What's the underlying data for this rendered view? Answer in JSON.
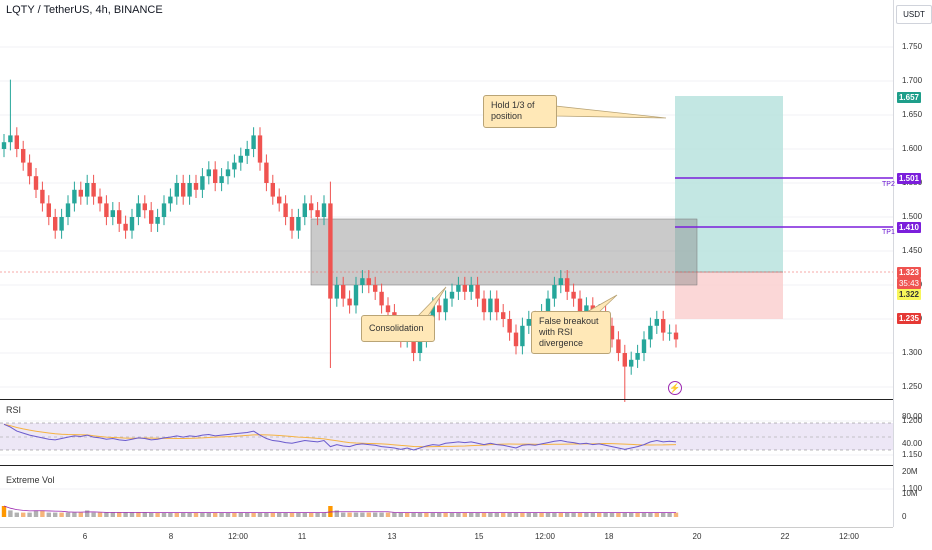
{
  "header": {
    "symbol_title": "LQTY / TetherUS, 4h, BINANCE",
    "currency": "USDT"
  },
  "price_axis": [
    "1.750",
    "1.700",
    "1.650",
    "1.600",
    "1.550",
    "1.500",
    "1.450",
    "1.400",
    "1.350",
    "1.300",
    "1.250",
    "1.200",
    "1.150",
    "1.100"
  ],
  "time_axis": [
    "6",
    "8",
    "12:00",
    "11",
    "13",
    "15",
    "12:00",
    "18",
    "20",
    "22",
    "12:00"
  ],
  "price_tags": {
    "target": "1.657",
    "tp2": "1.501",
    "tp1": "1.410",
    "last": "1.323",
    "countdown": "35:43",
    "entry": "1.322",
    "stop": "1.235"
  },
  "tp_labels": {
    "tp2": "TP2",
    "tp1": "TP1"
  },
  "notes": {
    "hold": "Hold 1/3 of\nposition",
    "consolidation": "Consolidation",
    "false_breakout": "False breakout\nwith RSI\ndivergence"
  },
  "rsi": {
    "label": "RSI",
    "ticks": [
      "80.00",
      "40.00"
    ]
  },
  "volume": {
    "label": "Extreme Vol",
    "ticks": [
      "20M",
      "10M",
      "0"
    ]
  },
  "colors": {
    "up": "#26a69a",
    "down": "#ef5350",
    "tp_line": "#7b1fdb",
    "profit_zone": "#b8e3de",
    "loss_zone": "#fbd3d3",
    "range_box": "#9e9e9e"
  },
  "chart_data": {
    "type": "candlestick",
    "timeframe": "4h",
    "ylim": [
      1.08,
      1.77
    ],
    "closes": [
      1.61,
      1.62,
      1.6,
      1.58,
      1.56,
      1.54,
      1.52,
      1.5,
      1.48,
      1.5,
      1.52,
      1.54,
      1.53,
      1.55,
      1.53,
      1.52,
      1.5,
      1.51,
      1.49,
      1.48,
      1.5,
      1.52,
      1.51,
      1.49,
      1.5,
      1.52,
      1.53,
      1.55,
      1.53,
      1.55,
      1.54,
      1.56,
      1.57,
      1.55,
      1.56,
      1.57,
      1.58,
      1.59,
      1.6,
      1.62,
      1.58,
      1.55,
      1.53,
      1.52,
      1.5,
      1.48,
      1.5,
      1.52,
      1.51,
      1.5,
      1.52,
      1.38,
      1.4,
      1.38,
      1.37,
      1.4,
      1.41,
      1.4,
      1.39,
      1.37,
      1.36,
      1.34,
      1.32,
      1.33,
      1.3,
      1.32,
      1.35,
      1.37,
      1.36,
      1.38,
      1.39,
      1.4,
      1.39,
      1.4,
      1.38,
      1.36,
      1.38,
      1.36,
      1.35,
      1.33,
      1.31,
      1.34,
      1.35,
      1.34,
      1.36,
      1.38,
      1.4,
      1.41,
      1.39,
      1.38,
      1.36,
      1.37,
      1.35,
      1.36,
      1.34,
      1.32,
      1.3,
      1.28,
      1.29,
      1.3,
      1.32,
      1.34,
      1.35,
      1.33,
      1.33,
      1.32
    ],
    "rsi": [
      68,
      64,
      58,
      55,
      52,
      50,
      48,
      46,
      45,
      47,
      49,
      51,
      50,
      52,
      49,
      48,
      46,
      47,
      45,
      44,
      46,
      48,
      47,
      45,
      46,
      48,
      49,
      51,
      49,
      51,
      50,
      52,
      53,
      51,
      52,
      53,
      54,
      55,
      56,
      58,
      52,
      47,
      44,
      43,
      41,
      40,
      42,
      44,
      43,
      42,
      44,
      35,
      38,
      36,
      35,
      38,
      39,
      38,
      37,
      35,
      34,
      33,
      31,
      33,
      30,
      33,
      36,
      38,
      37,
      40,
      41,
      42,
      41,
      42,
      40,
      38,
      40,
      38,
      37,
      35,
      33,
      37,
      38,
      37,
      39,
      41,
      43,
      44,
      42,
      41,
      39,
      40,
      38,
      39,
      37,
      35,
      33,
      31,
      33,
      35,
      38,
      42,
      44,
      42,
      43,
      42
    ],
    "volume_M": [
      5,
      3,
      2,
      2,
      2,
      3,
      3,
      2,
      2,
      2,
      2,
      2,
      2,
      3,
      2,
      2,
      2,
      2,
      2,
      2,
      2,
      2,
      2,
      2,
      2,
      2,
      2,
      2,
      2,
      2,
      2,
      2,
      2,
      2,
      2,
      2,
      2,
      2,
      2,
      2,
      2,
      2,
      2,
      2,
      2,
      2,
      2,
      2,
      2,
      2,
      2,
      5,
      3,
      2,
      2,
      2,
      2,
      2,
      2,
      2,
      2,
      2,
      2,
      2,
      2,
      2,
      2,
      2,
      2,
      2,
      2,
      2,
      2,
      2,
      2,
      2,
      2,
      2,
      2,
      2,
      2,
      2,
      2,
      2,
      2,
      2,
      2,
      2,
      2,
      2,
      2,
      2,
      2,
      2,
      2,
      2,
      2,
      2,
      2,
      2,
      2,
      2,
      2,
      2,
      2,
      2
    ],
    "levels": {
      "target": 1.657,
      "tp2": 1.501,
      "tp1": 1.41,
      "entry": 1.322,
      "stop": 1.235
    },
    "consolidation_range": [
      1.3,
      1.43
    ]
  }
}
